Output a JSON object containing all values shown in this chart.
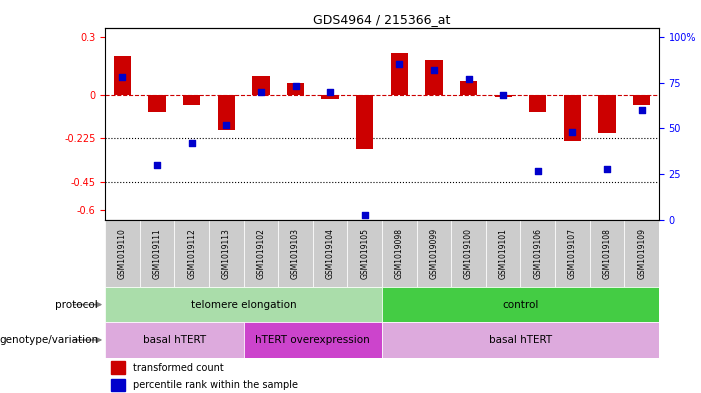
{
  "title": "GDS4964 / 215366_at",
  "samples": [
    "GSM1019110",
    "GSM1019111",
    "GSM1019112",
    "GSM1019113",
    "GSM1019102",
    "GSM1019103",
    "GSM1019104",
    "GSM1019105",
    "GSM1019098",
    "GSM1019099",
    "GSM1019100",
    "GSM1019101",
    "GSM1019106",
    "GSM1019107",
    "GSM1019108",
    "GSM1019109"
  ],
  "red_values": [
    0.2,
    -0.09,
    -0.05,
    -0.18,
    0.1,
    0.06,
    -0.02,
    -0.28,
    0.22,
    0.18,
    0.07,
    -0.01,
    -0.09,
    -0.24,
    -0.2,
    -0.05
  ],
  "blue_values": [
    78,
    30,
    42,
    52,
    70,
    73,
    70,
    3,
    85,
    82,
    77,
    68,
    27,
    48,
    28,
    60
  ],
  "ylim_left": [
    -0.65,
    0.35
  ],
  "ylim_right": [
    0,
    105
  ],
  "yticks_left": [
    0.3,
    0.0,
    -0.225,
    -0.45,
    -0.6
  ],
  "yticks_left_labels": [
    "0.3",
    "0",
    "-0.225",
    "-0.45",
    "-0.6"
  ],
  "yticks_right": [
    100,
    75,
    50,
    25,
    0
  ],
  "yticks_right_labels": [
    "100%",
    "75",
    "50",
    "25",
    "0"
  ],
  "dotted_lines": [
    -0.225,
    -0.45
  ],
  "bar_color": "#cc0000",
  "dot_color": "#0000cc",
  "protocol_telomere": {
    "label": "telomere elongation",
    "start": 0,
    "end": 7,
    "color": "#aaddaa"
  },
  "protocol_control": {
    "label": "control",
    "start": 8,
    "end": 15,
    "color": "#44cc44"
  },
  "geno_basal1": {
    "label": "basal hTERT",
    "start": 0,
    "end": 3,
    "color": "#ddaadd"
  },
  "geno_htert": {
    "label": "hTERT overexpression",
    "start": 4,
    "end": 7,
    "color": "#cc44cc"
  },
  "geno_basal2": {
    "label": "basal hTERT",
    "start": 8,
    "end": 15,
    "color": "#ddaadd"
  },
  "legend_red_label": "transformed count",
  "legend_blue_label": "percentile rank within the sample",
  "xlabel_protocol": "protocol",
  "xlabel_geno": "genotype/variation",
  "sample_box_color": "#cccccc",
  "sample_box_color2": "#dddddd"
}
